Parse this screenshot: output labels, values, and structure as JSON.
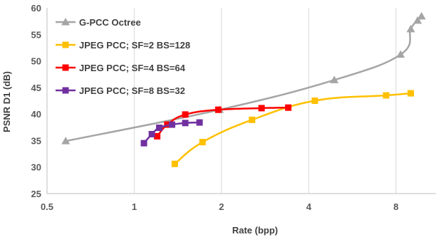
{
  "chart_data": {
    "type": "line",
    "title": "",
    "xlabel": "Rate (bpp)",
    "ylabel": "PSNR D1 (dB)",
    "xscale": "log2",
    "xlim": [
      0.5,
      11
    ],
    "ylim": [
      25,
      60
    ],
    "xticks": [
      0.5,
      1,
      2,
      4,
      8
    ],
    "xtick_labels": [
      "0.5",
      "1",
      "2",
      "4",
      "8"
    ],
    "yticks": [
      25,
      30,
      35,
      40,
      45,
      50,
      55,
      60
    ],
    "ytick_labels": [
      "25",
      "30",
      "35",
      "40",
      "45",
      "50",
      "55",
      "60"
    ],
    "grid": "vertical",
    "legend_position": "top-left",
    "series": [
      {
        "name": "G-PCC Octree",
        "color": "#a5a5a5",
        "marker": "triangle",
        "x": [
          0.58,
          1.97,
          4.9,
          8.3,
          9.0,
          9.5,
          9.8
        ],
        "y": [
          34.9,
          40.8,
          46.4,
          51.2,
          56.0,
          57.6,
          58.4
        ]
      },
      {
        "name": "JPEG PCC; SF=2 BS=128",
        "color": "#ffc000",
        "marker": "square",
        "x": [
          1.38,
          1.72,
          2.55,
          4.2,
          7.4,
          9.0
        ],
        "y": [
          30.6,
          34.7,
          38.9,
          42.5,
          43.5,
          43.9
        ]
      },
      {
        "name": "JPEG PCC; SF=4 BS=64",
        "color": "#ff0000",
        "marker": "square",
        "x": [
          1.2,
          1.3,
          1.5,
          1.95,
          2.75,
          3.4
        ],
        "y": [
          35.8,
          38.0,
          39.9,
          40.8,
          41.1,
          41.2
        ]
      },
      {
        "name": "JPEG PCC; SF=8 BS=32",
        "color": "#7030a0",
        "marker": "square",
        "x": [
          1.08,
          1.15,
          1.22,
          1.35,
          1.5,
          1.68
        ],
        "y": [
          34.5,
          36.2,
          37.4,
          38.0,
          38.3,
          38.4
        ]
      }
    ]
  }
}
